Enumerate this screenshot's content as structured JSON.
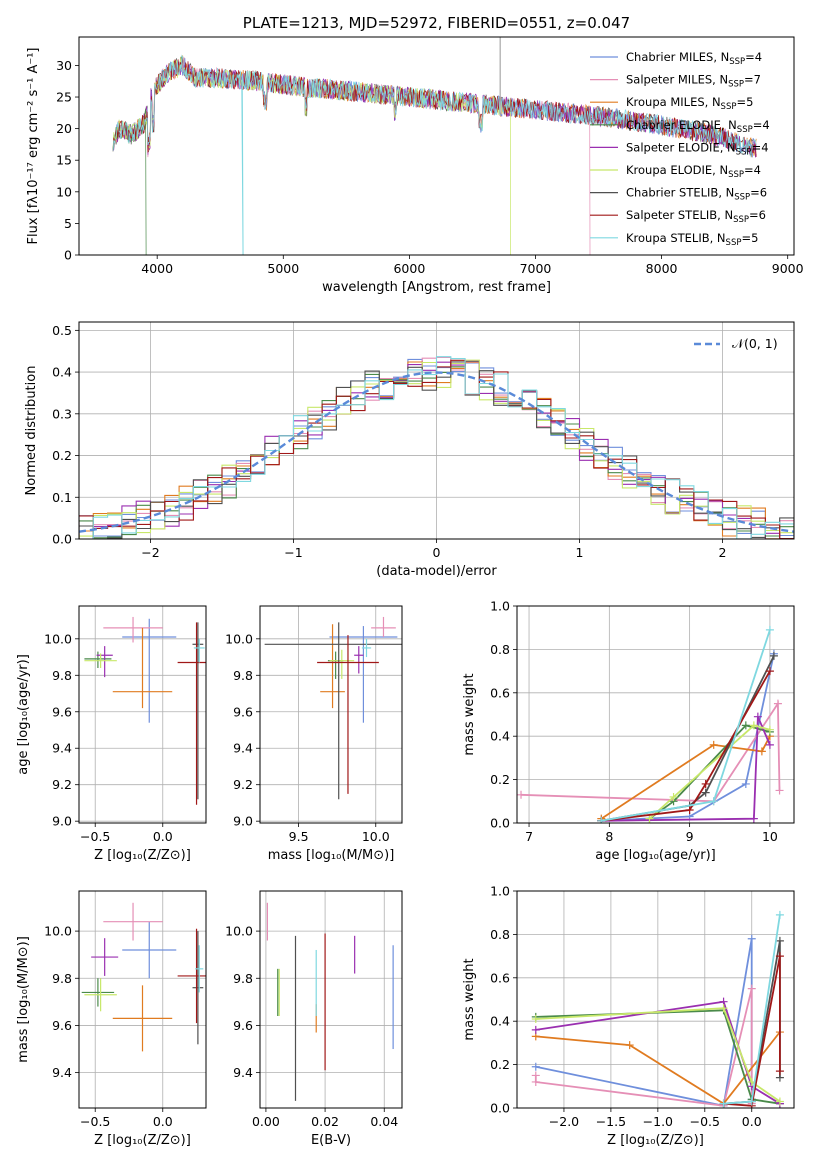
{
  "colors": {
    "chabrier_miles": "#6f8fdc",
    "salpeter_miles": "#e58fb6",
    "kroupa_miles": "#e07b20",
    "chabrier_elodie": "#4a8a4a",
    "salpeter_elodie": "#9a2fb0",
    "kroupa_elodie": "#c8e86a",
    "chabrier_stelib": "#505050",
    "salpeter_stelib": "#a01818",
    "kroupa_stelib": "#7fd8e0",
    "normal_curve": "#5a8ad8"
  },
  "chart_data": [
    {
      "id": "spectrum",
      "type": "line",
      "title": "PLATE=1213, MJD=52972, FIBERID=0551, z=0.047",
      "xlabel": "wavelength [Angstrom, rest frame]",
      "ylabel": "Flux [fλ10⁻¹⁷ erg cm⁻² s⁻¹ A⁻¹]",
      "xlim": [
        3380,
        9050
      ],
      "ylim": [
        0,
        34.5
      ],
      "xticks": [
        "4000",
        "5000",
        "6000",
        "7000",
        "8000",
        "9000"
      ],
      "yticks": [
        "0",
        "5",
        "10",
        "15",
        "20",
        "25",
        "30"
      ],
      "legend_position": "top-right",
      "legend": [
        {
          "model": "Chabrier MILES",
          "n": "4"
        },
        {
          "model": "Salpeter MILES",
          "n": "7"
        },
        {
          "model": "Kroupa MILES",
          "n": "5"
        },
        {
          "model": "Chabrier ELODIE",
          "n": "4"
        },
        {
          "model": "Salpeter ELODIE",
          "n": "4"
        },
        {
          "model": "Kroupa ELODIE",
          "n": "4"
        },
        {
          "model": "Chabrier STELIB",
          "n": "6"
        },
        {
          "model": "Salpeter STELIB",
          "n": "6"
        },
        {
          "model": "Kroupa STELIB",
          "n": "5"
        }
      ],
      "legend_subscript": "SSP",
      "continuum": [
        [
          3650,
          18
        ],
        [
          3700,
          20
        ],
        [
          3800,
          19
        ],
        [
          3900,
          21
        ],
        [
          3950,
          25
        ],
        [
          4000,
          27
        ],
        [
          4100,
          29
        ],
        [
          4200,
          30
        ],
        [
          4300,
          28
        ],
        [
          4500,
          28
        ],
        [
          4800,
          27.5
        ],
        [
          5000,
          27
        ],
        [
          5200,
          26.5
        ],
        [
          5500,
          26
        ],
        [
          6000,
          25
        ],
        [
          6500,
          24
        ],
        [
          7000,
          23
        ],
        [
          7500,
          22
        ],
        [
          8000,
          20.5
        ],
        [
          8300,
          19.5
        ],
        [
          8500,
          18.5
        ],
        [
          8700,
          17
        ]
      ],
      "dropouts": [
        [
          3910,
          0
        ],
        [
          4680,
          0
        ],
        [
          6800,
          0
        ],
        [
          7430,
          0
        ]
      ],
      "series_ranges": [
        [
          3650,
          8750
        ],
        [
          3650,
          7430
        ],
        [
          3650,
          8750
        ],
        [
          3650,
          3910
        ],
        [
          3650,
          8750
        ],
        [
          3650,
          6800
        ],
        [
          3650,
          8750
        ],
        [
          3650,
          8750
        ],
        [
          3650,
          8750
        ]
      ]
    },
    {
      "id": "residuals",
      "type": "line",
      "xlabel": "(data-model)/error",
      "ylabel": "Normed distribution",
      "xlim": [
        -2.5,
        2.5
      ],
      "ylim": [
        0,
        0.52
      ],
      "xticks": [
        "−2",
        "−1",
        "0",
        "1",
        "2"
      ],
      "yticks": [
        "0.0",
        "0.1",
        "0.2",
        "0.3",
        "0.4",
        "0.5"
      ],
      "grid": true,
      "legend_position": "top-right",
      "legend_label": "𝒩(0, 1)",
      "normal_curve": {
        "mean": 0,
        "sigma": 1
      },
      "bin_width": 0.1
    },
    {
      "id": "age-vs-z",
      "type": "scatter",
      "xlabel": "Z [log₁₀(Z/Z⊙)]",
      "ylabel": "age  [log₁₀(age/yr)]",
      "xlim": [
        -0.62,
        0.32
      ],
      "ylim": [
        8.99,
        10.18
      ],
      "xticks": [
        "−0.5",
        "0.0"
      ],
      "yticks": [
        "9.0",
        "9.2",
        "9.4",
        "9.6",
        "9.8",
        "10.0"
      ],
      "grid": true,
      "points": [
        {
          "x": -0.1,
          "y": 10.01,
          "xerr": 0.2,
          "yerr_lo": 0.47,
          "yerr_hi": 0.1
        },
        {
          "x": -0.22,
          "y": 10.06,
          "xerr": 0.22,
          "yerr_lo": 0.08,
          "yerr_hi": 0.06
        },
        {
          "x": -0.15,
          "y": 9.71,
          "xerr": 0.22,
          "yerr_lo": 0.09,
          "yerr_hi": 0.35
        },
        {
          "x": -0.48,
          "y": 9.89,
          "xerr": 0.1,
          "yerr_lo": 0.05,
          "yerr_hi": 0.04
        },
        {
          "x": -0.43,
          "y": 9.91,
          "xerr": 0.06,
          "yerr_lo": 0.12,
          "yerr_hi": 0.05
        },
        {
          "x": -0.46,
          "y": 9.88,
          "xerr": 0.12,
          "yerr_lo": 0.04,
          "yerr_hi": 0.04
        },
        {
          "x": 0.26,
          "y": 9.97,
          "xerr": 0.04,
          "yerr_lo": 0.85,
          "yerr_hi": 0.12
        },
        {
          "x": 0.25,
          "y": 9.87,
          "xerr": 0.14,
          "yerr_lo": 0.78,
          "yerr_hi": 0.22
        },
        {
          "x": 0.27,
          "y": 9.95,
          "xerr": 0.04,
          "yerr_lo": 0.08,
          "yerr_hi": 0.05
        }
      ]
    },
    {
      "id": "age-vs-mass",
      "type": "scatter",
      "xlabel": "mass [log₁₀(M/M⊙)]",
      "xlim": [
        9.25,
        10.17
      ],
      "ylim": [
        8.99,
        10.18
      ],
      "xticks": [
        "9.5",
        "10.0"
      ],
      "yticks": [
        "9.0",
        "9.2",
        "9.4",
        "9.6",
        "9.8",
        "10.0"
      ],
      "grid": true,
      "points": [
        {
          "x": 9.92,
          "y": 10.01,
          "xerr": 0.22,
          "yerr_lo": 0.47,
          "yerr_hi": 0.06
        },
        {
          "x": 10.05,
          "y": 10.06,
          "xerr": 0.08,
          "yerr_lo": 0.05,
          "yerr_hi": 0.06
        },
        {
          "x": 9.72,
          "y": 9.71,
          "xerr": 0.08,
          "yerr_lo": 0.09,
          "yerr_hi": 0.37
        },
        {
          "x": 9.74,
          "y": 9.88,
          "xerr": 0.05,
          "yerr_lo": 0.1,
          "yerr_hi": 0.05
        },
        {
          "x": 9.89,
          "y": 9.91,
          "xerr": 0.03,
          "yerr_lo": 0.1,
          "yerr_hi": 0.05
        },
        {
          "x": 9.78,
          "y": 9.88,
          "xerr": 0.08,
          "yerr_lo": 0.1,
          "yerr_hi": 0.06
        },
        {
          "x": 9.76,
          "y": 9.97,
          "xerr": 0.48,
          "yerr_lo": 0.85,
          "yerr_hi": 0.12
        },
        {
          "x": 9.82,
          "y": 9.87,
          "xerr": 0.2,
          "yerr_lo": 0.72,
          "yerr_hi": 0.15
        },
        {
          "x": 9.94,
          "y": 9.95,
          "xerr": 0.03,
          "yerr_lo": 0.05,
          "yerr_hi": 0.05
        }
      ]
    },
    {
      "id": "weight-vs-age",
      "type": "line",
      "xlabel": "age  [log₁₀(age/yr)]",
      "ylabel": "mass weight",
      "xlim": [
        6.85,
        10.3
      ],
      "ylim": [
        0,
        1.0
      ],
      "xticks": [
        "7",
        "8",
        "9",
        "10"
      ],
      "yticks": [
        "0.0",
        "0.2",
        "0.4",
        "0.6",
        "0.8",
        "1.0"
      ],
      "grid": true,
      "series": [
        {
          "values": [
            [
              7.9,
              0.01
            ],
            [
              9.0,
              0.03
            ],
            [
              9.7,
              0.18
            ],
            [
              10.05,
              0.78
            ]
          ]
        },
        {
          "values": [
            [
              6.9,
              0.13
            ],
            [
              9.3,
              0.1
            ],
            [
              10.1,
              0.55
            ],
            [
              10.12,
              0.15
            ]
          ]
        },
        {
          "values": [
            [
              7.9,
              0.02
            ],
            [
              9.3,
              0.36
            ],
            [
              9.9,
              0.33
            ],
            [
              10.0,
              0.4
            ]
          ]
        },
        {
          "values": [
            [
              8.5,
              0.02
            ],
            [
              8.8,
              0.1
            ],
            [
              9.7,
              0.45
            ],
            [
              10.0,
              0.42
            ]
          ]
        },
        {
          "values": [
            [
              7.9,
              0.01
            ],
            [
              9.8,
              0.02
            ],
            [
              9.85,
              0.49
            ],
            [
              10.0,
              0.36
            ]
          ]
        },
        {
          "values": [
            [
              8.5,
              0.02
            ],
            [
              8.8,
              0.12
            ],
            [
              9.8,
              0.45
            ],
            [
              10.0,
              0.43
            ]
          ]
        },
        {
          "values": [
            [
              7.9,
              0.01
            ],
            [
              9.0,
              0.08
            ],
            [
              9.2,
              0.14
            ],
            [
              10.05,
              0.77
            ]
          ]
        },
        {
          "values": [
            [
              7.9,
              0.01
            ],
            [
              9.0,
              0.06
            ],
            [
              9.2,
              0.18
            ],
            [
              10.0,
              0.7
            ]
          ]
        },
        {
          "values": [
            [
              7.9,
              0.01
            ],
            [
              9.3,
              0.1
            ],
            [
              10.0,
              0.89
            ]
          ]
        }
      ]
    },
    {
      "id": "mass-vs-z",
      "type": "scatter",
      "xlabel": "Z [log₁₀(Z/Z⊙)]",
      "ylabel": "mass [log₁₀(M/M⊙)]",
      "xlim": [
        -0.62,
        0.32
      ],
      "ylim": [
        9.25,
        10.17
      ],
      "xticks": [
        "−0.5",
        "0.0"
      ],
      "yticks": [
        "9.4",
        "9.6",
        "9.8",
        "10.0"
      ],
      "grid": true,
      "points": [
        {
          "x": -0.1,
          "y": 9.92,
          "xerr": 0.2,
          "yerr": 0.12
        },
        {
          "x": -0.22,
          "y": 10.04,
          "xerr": 0.22,
          "yerr": 0.08
        },
        {
          "x": -0.15,
          "y": 9.63,
          "xerr": 0.22,
          "yerr": 0.14
        },
        {
          "x": -0.48,
          "y": 9.74,
          "xerr": 0.12,
          "yerr": 0.06
        },
        {
          "x": -0.43,
          "y": 9.89,
          "xerr": 0.1,
          "yerr": 0.08
        },
        {
          "x": -0.46,
          "y": 9.73,
          "xerr": 0.12,
          "yerr": 0.07
        },
        {
          "x": 0.26,
          "y": 9.76,
          "xerr": 0.04,
          "yerr": 0.24
        },
        {
          "x": 0.25,
          "y": 9.81,
          "xerr": 0.14,
          "yerr": 0.2
        },
        {
          "x": 0.27,
          "y": 9.84,
          "xerr": 0.03,
          "yerr": 0.1
        }
      ]
    },
    {
      "id": "mass-vs-ebv",
      "type": "scatter",
      "xlabel": "E(B-V)",
      "xlim": [
        -0.002,
        0.046
      ],
      "ylim": [
        9.25,
        10.17
      ],
      "xticks": [
        "0.00",
        "0.02",
        "0.04"
      ],
      "yticks": [
        "9.4",
        "9.6",
        "9.8",
        "10.0"
      ],
      "grid": true,
      "points": [
        {
          "x": 0.043,
          "y": 9.72,
          "yerr": 0.22
        },
        {
          "x": 0.0005,
          "y": 10.04,
          "yerr": 0.08
        },
        {
          "x": 0.017,
          "y": 9.63,
          "yerr": 0.06
        },
        {
          "x": 0.004,
          "y": 9.74,
          "yerr": 0.1
        },
        {
          "x": 0.03,
          "y": 9.9,
          "yerr": 0.08
        },
        {
          "x": 0.0045,
          "y": 9.74,
          "yerr": 0.1
        },
        {
          "x": 0.01,
          "y": 9.63,
          "yerr": 0.35
        },
        {
          "x": 0.02,
          "y": 9.7,
          "yerr": 0.29
        },
        {
          "x": 0.017,
          "y": 9.78,
          "yerr": 0.14
        }
      ]
    },
    {
      "id": "weight-vs-z",
      "type": "line",
      "xlabel": "Z [log₁₀(Z/Z⊙)]",
      "ylabel": "mass weight",
      "xlim": [
        -2.5,
        0.45
      ],
      "ylim": [
        0,
        1.0
      ],
      "xticks": [
        "−2.0",
        "−1.5",
        "−1.0",
        "−0.5",
        "0.0"
      ],
      "yticks": [
        "0.0",
        "0.2",
        "0.4",
        "0.6",
        "0.8",
        "1.0"
      ],
      "grid": true,
      "series": [
        {
          "values": [
            [
              -2.3,
              0.19
            ],
            [
              -0.3,
              0.01
            ],
            [
              0.0,
              0.78
            ],
            [
              0.0,
              0.04
            ]
          ]
        },
        {
          "values": [
            [
              -2.3,
              0.15
            ],
            [
              -2.3,
              0.12
            ],
            [
              -0.3,
              0.01
            ],
            [
              0.0,
              0.55
            ],
            [
              0.0,
              0.02
            ]
          ]
        },
        {
          "values": [
            [
              -2.3,
              0.33
            ],
            [
              -1.3,
              0.29
            ],
            [
              -0.3,
              0.02
            ],
            [
              0.3,
              0.35
            ]
          ]
        },
        {
          "values": [
            [
              -2.3,
              0.42
            ],
            [
              -0.3,
              0.45
            ],
            [
              0.0,
              0.04
            ],
            [
              0.3,
              0.02
            ]
          ]
        },
        {
          "values": [
            [
              -2.3,
              0.36
            ],
            [
              -0.3,
              0.49
            ],
            [
              0.0,
              0.1
            ],
            [
              0.3,
              0.02
            ]
          ]
        },
        {
          "values": [
            [
              -2.3,
              0.41
            ],
            [
              -0.3,
              0.46
            ],
            [
              0.0,
              0.12
            ],
            [
              0.3,
              0.03
            ]
          ]
        },
        {
          "values": [
            [
              -0.3,
              0.02
            ],
            [
              0.0,
              0.03
            ],
            [
              0.3,
              0.77
            ],
            [
              0.3,
              0.14
            ]
          ]
        },
        {
          "values": [
            [
              -0.3,
              0.02
            ],
            [
              0.0,
              0.01
            ],
            [
              0.3,
              0.7
            ],
            [
              0.3,
              0.17
            ]
          ]
        },
        {
          "values": [
            [
              -0.3,
              0.02
            ],
            [
              0.0,
              0.03
            ],
            [
              0.3,
              0.89
            ]
          ]
        }
      ]
    }
  ]
}
